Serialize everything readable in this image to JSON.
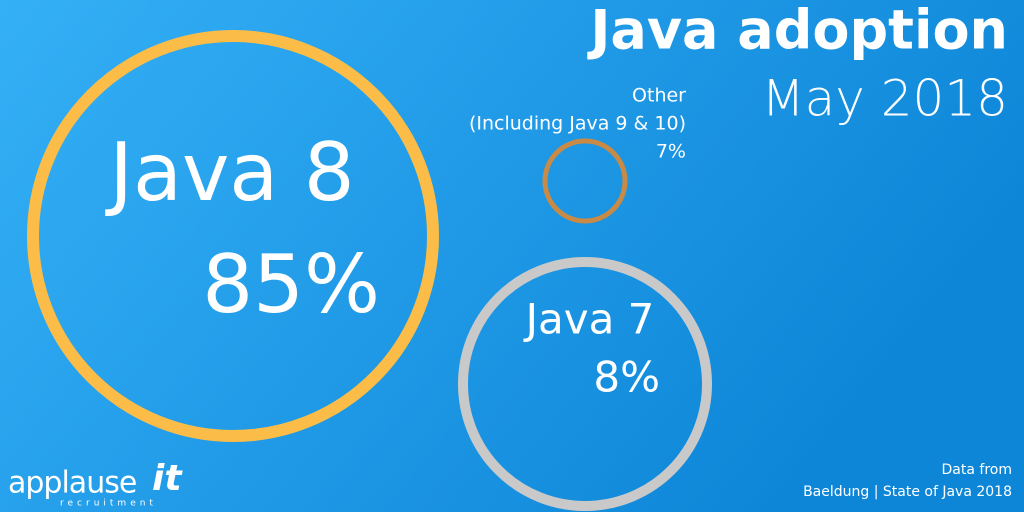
{
  "chart_data": {
    "type": "bubble",
    "title": "Java adoption",
    "subtitle": "May 2018",
    "categories": [
      "Java 8",
      "Java 7",
      "Other"
    ],
    "annotations": [
      "(Including Java 9 & 10)"
    ],
    "values": [
      85,
      8,
      7
    ],
    "value_labels": [
      "85%",
      "8%",
      "7%"
    ],
    "colors": [
      "#fbbd47",
      "#c9c9c9",
      "#c98a45"
    ],
    "source": [
      "Data from",
      "Baeldung | State of Java 2018"
    ],
    "logo": {
      "name": "applause",
      "mark": "it",
      "tagline": "recruitment"
    }
  }
}
